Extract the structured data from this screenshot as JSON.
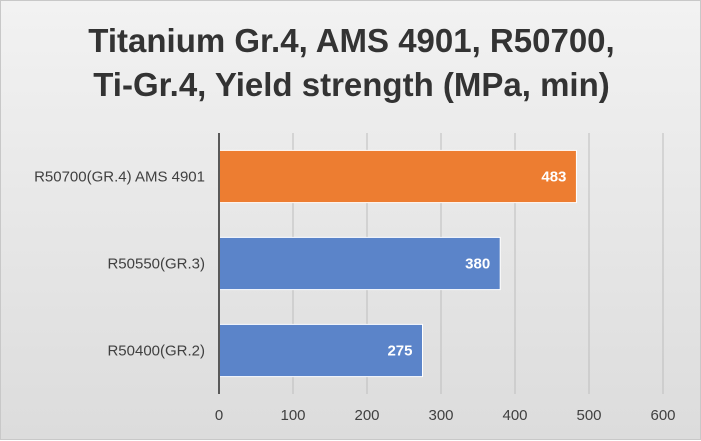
{
  "chart_data": {
    "type": "bar",
    "orientation": "horizontal",
    "title_lines": [
      "Titanium Gr.4, AMS 4901, R50700,",
      "Ti-Gr.4, Yield strength (MPa, min)"
    ],
    "categories": [
      "R50700(GR.4) AMS 4901",
      "R50550(GR.3)",
      "R50400(GR.2)"
    ],
    "values": [
      483,
      380,
      275
    ],
    "data_labels": [
      "483",
      "380",
      "275"
    ],
    "bar_colors": [
      "#ED7D31",
      "#5B84C9",
      "#5B84C9"
    ],
    "xlim": [
      0,
      600
    ],
    "x_ticks": [
      0,
      100,
      200,
      300,
      400,
      500,
      600
    ],
    "x_tick_labels": [
      "0",
      "100",
      "200",
      "300",
      "400",
      "500",
      "600"
    ],
    "grid": true,
    "legend": "none"
  }
}
